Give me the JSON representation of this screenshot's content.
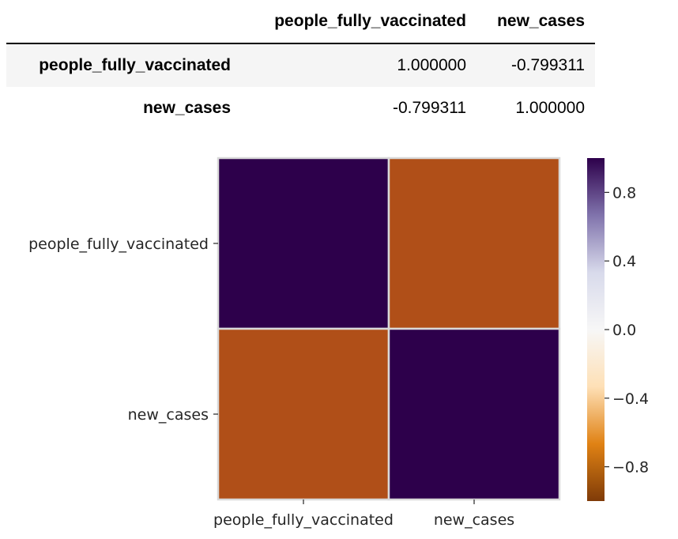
{
  "table": {
    "columns": [
      "people_fully_vaccinated",
      "new_cases"
    ],
    "rows": [
      {
        "index": "people_fully_vaccinated",
        "values": [
          "1.000000",
          "-0.799311"
        ]
      },
      {
        "index": "new_cases",
        "values": [
          "-0.799311",
          "1.000000"
        ]
      }
    ]
  },
  "chart_data": {
    "type": "heatmap",
    "x_labels": [
      "people_fully_vaccinated",
      "new_cases"
    ],
    "y_labels": [
      "people_fully_vaccinated",
      "new_cases"
    ],
    "values": [
      [
        1.0,
        -0.799311
      ],
      [
        -0.799311,
        1.0
      ]
    ],
    "colorbar": {
      "range": [
        -1.0,
        1.0
      ],
      "ticks": [
        0.8,
        0.4,
        0.0,
        -0.4,
        -0.8
      ],
      "tick_labels": [
        "0.8",
        "0.4",
        "0.0",
        "−0.4",
        "−0.8"
      ],
      "colormap": "PuOr",
      "stops": [
        "#7f3b08",
        "#e08214",
        "#fee0b6",
        "#f7f7f7",
        "#d8daeb",
        "#8073ac",
        "#2d004b"
      ]
    },
    "cell_colors": {
      "high": "#2d004b",
      "mid_negative": "#b04f18"
    },
    "gridline_color": "#d9d9d9"
  }
}
